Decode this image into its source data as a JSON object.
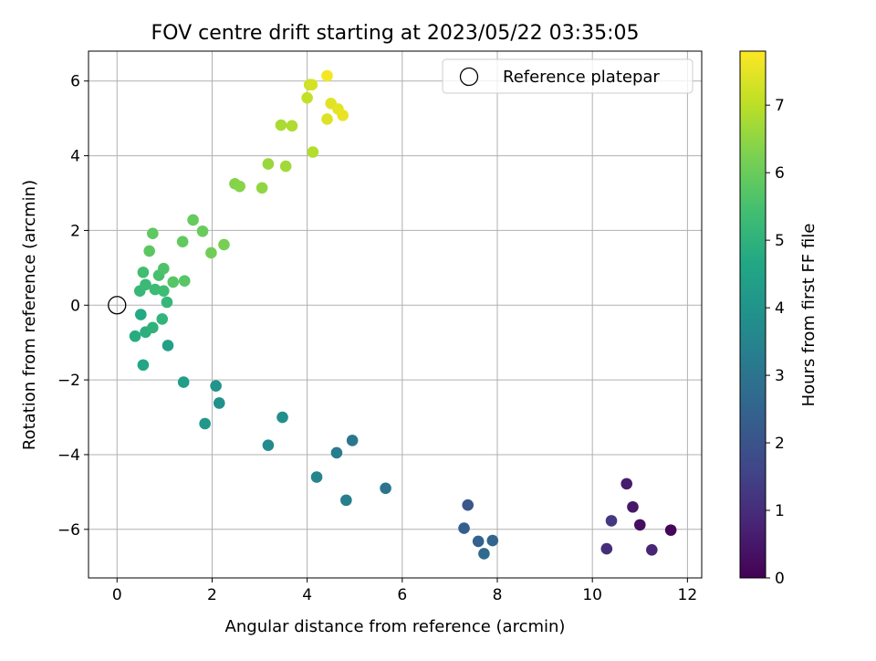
{
  "chart_data": {
    "type": "scatter",
    "title": "FOV centre drift starting at 2023/05/22 03:35:05",
    "xlabel": "Angular distance from reference (arcmin)",
    "ylabel": "Rotation from reference (arcmin)",
    "xlim": [
      -0.6,
      12.3
    ],
    "ylim": [
      -7.3,
      6.8
    ],
    "xticks": [
      0,
      2,
      4,
      6,
      8,
      10,
      12
    ],
    "yticks": [
      -6,
      -4,
      -2,
      0,
      2,
      4,
      6
    ],
    "grid": true,
    "colormap": "viridis",
    "colorbar": {
      "label": "Hours from first FF file",
      "range": [
        0,
        7.8
      ],
      "ticks": [
        0,
        1,
        2,
        3,
        4,
        5,
        6,
        7
      ]
    },
    "legend": {
      "placement": "top-right",
      "entries": [
        "Reference platepar"
      ]
    },
    "reference_point": {
      "x": 0,
      "y": 0
    },
    "points": [
      {
        "x": 11.65,
        "y": -6.02,
        "t": 0.1
      },
      {
        "x": 11.0,
        "y": -5.88,
        "t": 0.3
      },
      {
        "x": 10.85,
        "y": -5.4,
        "t": 0.5
      },
      {
        "x": 10.72,
        "y": -4.78,
        "t": 0.6
      },
      {
        "x": 11.25,
        "y": -6.55,
        "t": 0.8
      },
      {
        "x": 10.3,
        "y": -6.52,
        "t": 1.0
      },
      {
        "x": 10.4,
        "y": -5.77,
        "t": 1.3
      },
      {
        "x": 7.38,
        "y": -5.35,
        "t": 2.1
      },
      {
        "x": 7.3,
        "y": -5.97,
        "t": 2.3
      },
      {
        "x": 7.6,
        "y": -6.32,
        "t": 2.4
      },
      {
        "x": 7.9,
        "y": -6.3,
        "t": 2.5
      },
      {
        "x": 7.72,
        "y": -6.65,
        "t": 2.7
      },
      {
        "x": 5.65,
        "y": -4.9,
        "t": 3.0
      },
      {
        "x": 4.95,
        "y": -3.62,
        "t": 3.1
      },
      {
        "x": 4.62,
        "y": -3.95,
        "t": 3.2
      },
      {
        "x": 4.82,
        "y": -5.22,
        "t": 3.3
      },
      {
        "x": 4.2,
        "y": -4.6,
        "t": 3.5
      },
      {
        "x": 3.18,
        "y": -3.75,
        "t": 3.7
      },
      {
        "x": 3.48,
        "y": -3.0,
        "t": 3.8
      },
      {
        "x": 2.15,
        "y": -2.62,
        "t": 3.9
      },
      {
        "x": 2.08,
        "y": -2.16,
        "t": 4.0
      },
      {
        "x": 1.85,
        "y": -3.17,
        "t": 4.1
      },
      {
        "x": 1.4,
        "y": -2.06,
        "t": 4.3
      },
      {
        "x": 1.07,
        "y": -1.08,
        "t": 4.4
      },
      {
        "x": 0.55,
        "y": -1.6,
        "t": 4.6
      },
      {
        "x": 0.5,
        "y": -0.25,
        "t": 4.7
      },
      {
        "x": 0.38,
        "y": -0.83,
        "t": 4.8
      },
      {
        "x": 0.6,
        "y": -0.72,
        "t": 4.9
      },
      {
        "x": 0.75,
        "y": -0.6,
        "t": 5.0
      },
      {
        "x": 0.95,
        "y": -0.37,
        "t": 5.1
      },
      {
        "x": 1.05,
        "y": 0.08,
        "t": 5.15
      },
      {
        "x": 0.48,
        "y": 0.38,
        "t": 5.2
      },
      {
        "x": 0.6,
        "y": 0.55,
        "t": 5.25
      },
      {
        "x": 0.8,
        "y": 0.42,
        "t": 5.3
      },
      {
        "x": 0.98,
        "y": 0.38,
        "t": 5.35
      },
      {
        "x": 0.55,
        "y": 0.88,
        "t": 5.4
      },
      {
        "x": 0.88,
        "y": 0.8,
        "t": 5.5
      },
      {
        "x": 0.98,
        "y": 0.98,
        "t": 5.6
      },
      {
        "x": 1.18,
        "y": 0.62,
        "t": 5.7
      },
      {
        "x": 1.42,
        "y": 0.65,
        "t": 5.75
      },
      {
        "x": 0.68,
        "y": 1.45,
        "t": 5.8
      },
      {
        "x": 0.75,
        "y": 1.92,
        "t": 5.85
      },
      {
        "x": 1.38,
        "y": 1.7,
        "t": 5.9
      },
      {
        "x": 1.6,
        "y": 2.28,
        "t": 5.95
      },
      {
        "x": 1.8,
        "y": 1.98,
        "t": 6.0
      },
      {
        "x": 1.98,
        "y": 1.4,
        "t": 6.1
      },
      {
        "x": 2.25,
        "y": 1.62,
        "t": 6.2
      },
      {
        "x": 2.48,
        "y": 3.25,
        "t": 6.35
      },
      {
        "x": 2.58,
        "y": 3.18,
        "t": 6.4
      },
      {
        "x": 3.05,
        "y": 3.14,
        "t": 6.5
      },
      {
        "x": 3.18,
        "y": 3.78,
        "t": 6.6
      },
      {
        "x": 3.55,
        "y": 3.72,
        "t": 6.7
      },
      {
        "x": 3.45,
        "y": 4.82,
        "t": 6.8
      },
      {
        "x": 3.68,
        "y": 4.8,
        "t": 6.85
      },
      {
        "x": 4.12,
        "y": 4.1,
        "t": 6.9
      },
      {
        "x": 4.0,
        "y": 5.55,
        "t": 7.1
      },
      {
        "x": 4.05,
        "y": 5.9,
        "t": 7.2
      },
      {
        "x": 4.1,
        "y": 5.9,
        "t": 7.3
      },
      {
        "x": 4.42,
        "y": 4.98,
        "t": 7.4
      },
      {
        "x": 4.5,
        "y": 5.4,
        "t": 7.45
      },
      {
        "x": 4.65,
        "y": 5.25,
        "t": 7.5
      },
      {
        "x": 4.75,
        "y": 5.08,
        "t": 7.55
      },
      {
        "x": 4.42,
        "y": 6.14,
        "t": 7.7
      }
    ]
  }
}
